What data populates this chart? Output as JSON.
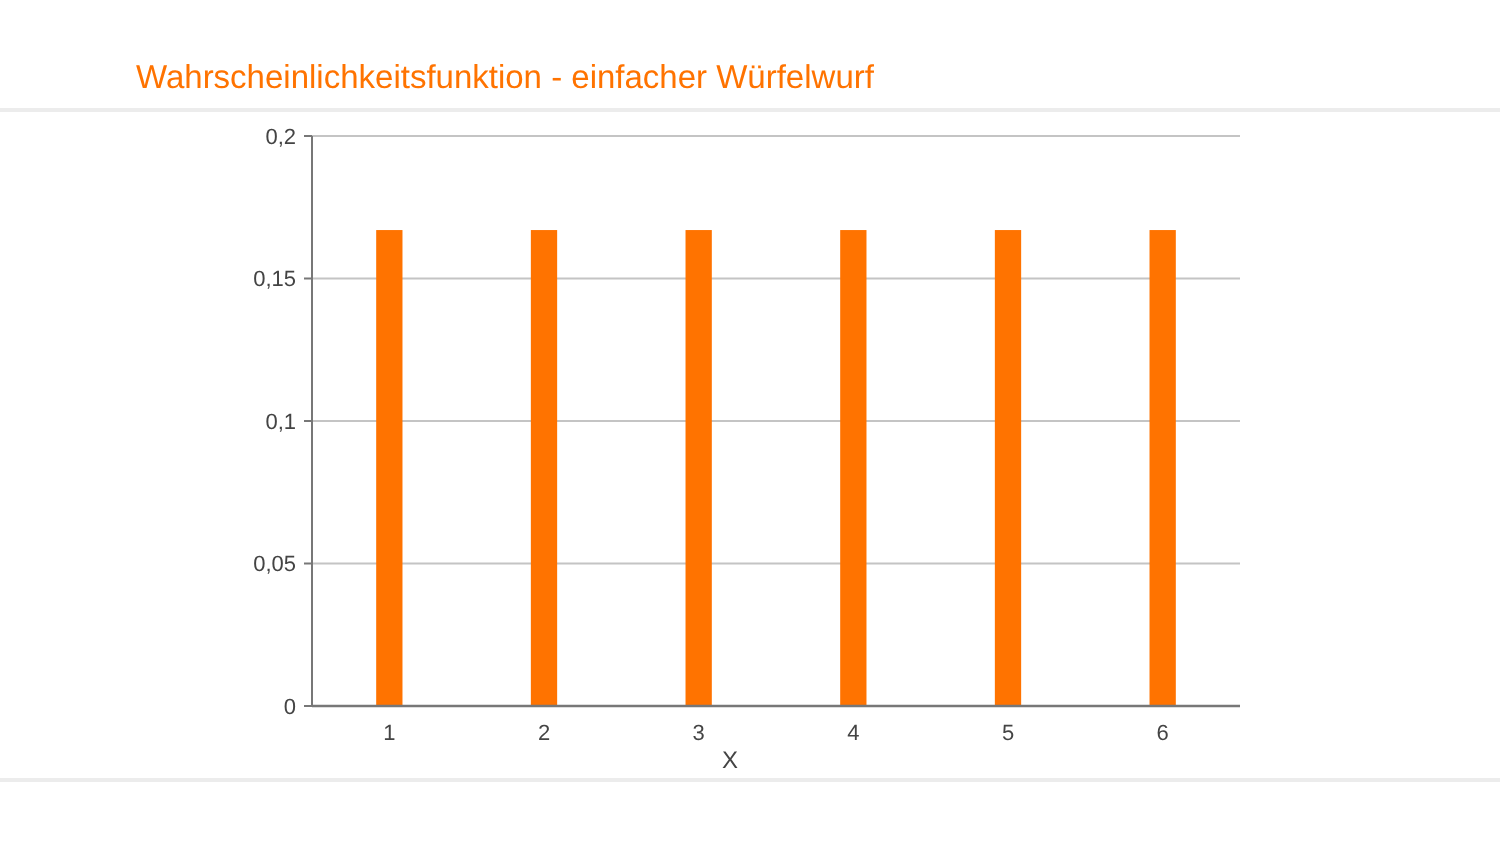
{
  "chart_data": {
    "type": "bar",
    "title": "Wahrscheinlichkeitsfunktion - einfacher Würfelwurf",
    "xlabel": "X",
    "categories": [
      "1",
      "2",
      "3",
      "4",
      "5",
      "6"
    ],
    "values": [
      0.167,
      0.167,
      0.167,
      0.167,
      0.167,
      0.167
    ],
    "color": "#ff7300",
    "ylim": [
      0,
      0.2
    ],
    "yticks": [
      {
        "value": 0,
        "label": "0"
      },
      {
        "value": 0.05,
        "label": "0,05"
      },
      {
        "value": 0.1,
        "label": "0,1"
      },
      {
        "value": 0.15,
        "label": "0,15"
      },
      {
        "value": 0.2,
        "label": "0,2"
      }
    ],
    "grid": "y"
  }
}
